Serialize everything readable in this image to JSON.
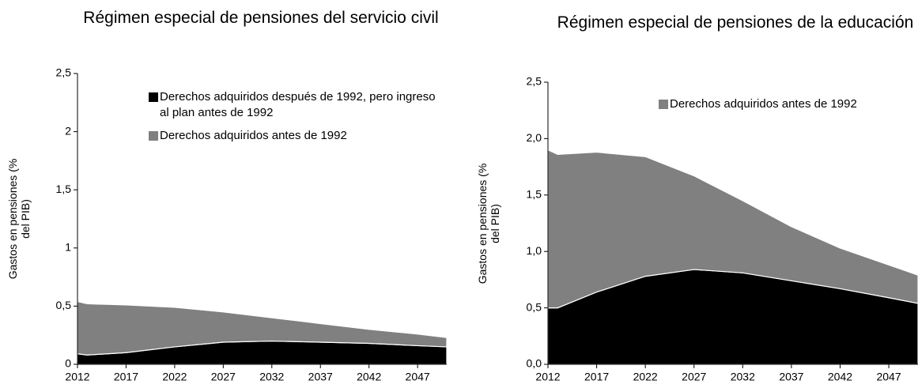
{
  "chart_data": [
    {
      "type": "area",
      "title": "Régimen especial de pensiones del servicio civil",
      "y_label": "Gastos en pensiones (% del PIB)",
      "x": [
        2012,
        2013,
        2017,
        2022,
        2027,
        2032,
        2037,
        2042,
        2047,
        2050
      ],
      "series": [
        {
          "name": "Derechos adquiridos después de 1992, pero ingreso al plan antes de 1992",
          "color": "#000000",
          "values": [
            0.09,
            0.08,
            0.1,
            0.15,
            0.19,
            0.2,
            0.19,
            0.18,
            0.16,
            0.15
          ]
        },
        {
          "name": "Derechos adquiridos antes de 1992",
          "color": "#808080",
          "values": [
            0.45,
            0.44,
            0.41,
            0.34,
            0.26,
            0.2,
            0.16,
            0.12,
            0.1,
            0.08
          ]
        }
      ],
      "stacked": true,
      "xlim": [
        2012,
        2050
      ],
      "xticks": [
        2012,
        2017,
        2022,
        2027,
        2032,
        2037,
        2042,
        2047
      ],
      "ylim": [
        0,
        2.5
      ],
      "yticks": [
        0,
        {
          "value": 0.5,
          "label": "0,5"
        },
        1,
        {
          "value": 1.5,
          "label": "1,5"
        },
        2,
        {
          "value": 2.5,
          "label": "2,5"
        }
      ]
    },
    {
      "type": "area",
      "title": "Régimen especial de pensiones de la educación",
      "y_label": "Gastos en pensiones (% del PIB)",
      "x": [
        2012,
        2013,
        2017,
        2022,
        2027,
        2032,
        2037,
        2042,
        2047,
        2050
      ],
      "series": [
        {
          "color": "#000000",
          "values": [
            0.5,
            0.5,
            0.64,
            0.78,
            0.84,
            0.81,
            0.74,
            0.67,
            0.59,
            0.54
          ]
        },
        {
          "name": "Derechos adquiridos antes de 1992",
          "color": "#808080",
          "values": [
            1.4,
            1.36,
            1.24,
            1.06,
            0.83,
            0.64,
            0.48,
            0.36,
            0.29,
            0.25
          ]
        }
      ],
      "stacked": true,
      "xlim": [
        2012,
        2050
      ],
      "xticks": [
        2012,
        2017,
        2022,
        2027,
        2032,
        2037,
        2042,
        2047
      ],
      "ylim": [
        0,
        2.5
      ],
      "yticks": [
        {
          "value": 0,
          "label": "0,0"
        },
        {
          "value": 0.5,
          "label": "0,5"
        },
        {
          "value": 1,
          "label": "1,0"
        },
        {
          "value": 1.5,
          "label": "1,5"
        },
        {
          "value": 2,
          "label": "2,0"
        },
        {
          "value": 2.5,
          "label": "2,5"
        }
      ]
    }
  ]
}
